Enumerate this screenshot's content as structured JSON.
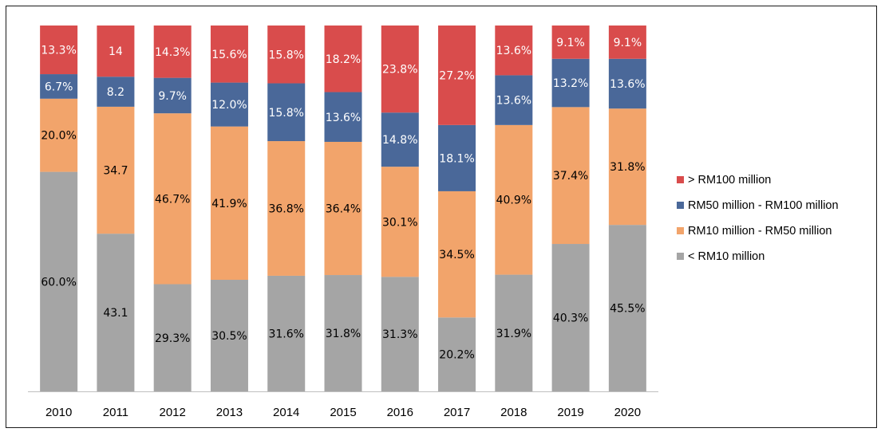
{
  "chart_data": {
    "type": "bar",
    "stacked": true,
    "percent_stacked": true,
    "categories": [
      "2010",
      "2011",
      "2012",
      "2013",
      "2014",
      "2015",
      "2016",
      "2017",
      "2018",
      "2019",
      "2020"
    ],
    "series": [
      {
        "name": "< RM10 million",
        "color": "#a5a5a5",
        "values": [
          60.0,
          43.1,
          29.3,
          30.5,
          31.6,
          31.8,
          31.3,
          20.2,
          31.9,
          40.3,
          45.5
        ],
        "labels": [
          "60.0%",
          "43.1",
          "29.3%",
          "30.5%",
          "31.6%",
          "31.8%",
          "31.3%",
          "20.2%",
          "31.9%",
          "40.3%",
          "45.5%"
        ]
      },
      {
        "name": "RM10 million - RM50 million",
        "color": "#f2a46b",
        "values": [
          20.0,
          34.7,
          46.7,
          41.9,
          36.8,
          36.4,
          30.1,
          34.5,
          40.9,
          37.4,
          31.8
        ],
        "labels": [
          "20.0%",
          "34.7",
          "46.7%",
          "41.9%",
          "36.8%",
          "36.4%",
          "30.1%",
          "34.5%",
          "40.9%",
          "37.4%",
          "31.8%"
        ]
      },
      {
        "name": "RM50 million - RM100 million",
        "color": "#4a6899",
        "values": [
          6.7,
          8.2,
          9.7,
          12.0,
          15.8,
          13.6,
          14.8,
          18.1,
          13.6,
          13.2,
          13.6
        ],
        "labels": [
          "6.7%",
          "8.2",
          "9.7%",
          "12.0%",
          "15.8%",
          "13.6%",
          "14.8%",
          "18.1%",
          "13.6%",
          "13.2%",
          "13.6%"
        ]
      },
      {
        "name": "> RM100 million",
        "color": "#d94c4c",
        "values": [
          13.3,
          14,
          14.3,
          15.6,
          15.8,
          18.2,
          23.8,
          27.2,
          13.6,
          9.1,
          9.1
        ],
        "labels": [
          "13.3%",
          "14",
          "14.3%",
          "15.6%",
          "15.8%",
          "18.2%",
          "23.8%",
          "27.2%",
          "13.6%",
          "9.1%",
          "9.1%"
        ]
      }
    ],
    "legend_order": [
      "> RM100 million",
      "RM50 million - RM100 million",
      "RM10 million - RM50 million",
      "< RM10 million"
    ],
    "legend_position": "right",
    "grid": false,
    "label_colors": {
      "dark": "#000000",
      "light": "#ffffff"
    }
  }
}
